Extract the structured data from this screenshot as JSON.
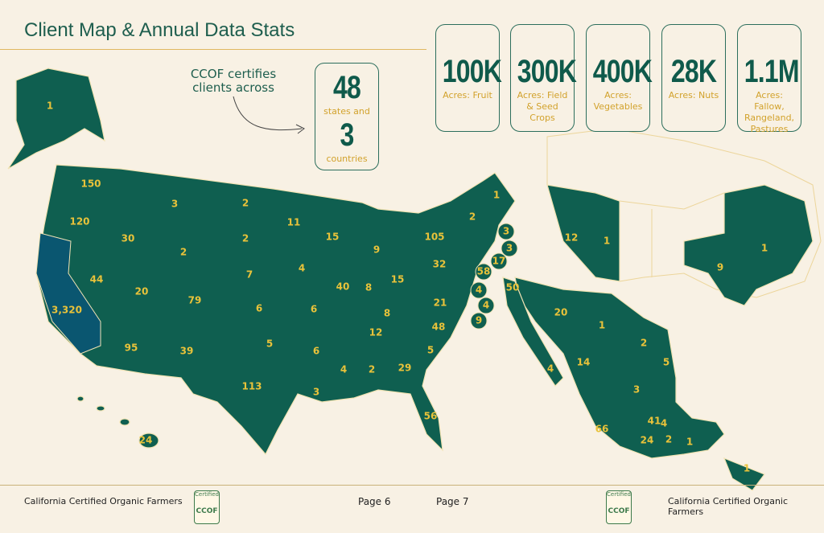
{
  "header": {
    "title": "Client Map & Annual Data Stats"
  },
  "callout": {
    "text": "CCOF certifies clients across",
    "states_number": "48",
    "states_label": "states and",
    "countries_number": "3",
    "countries_label": "countries"
  },
  "stats": [
    {
      "value": "100K",
      "label": "Acres: Fruit"
    },
    {
      "value": "300K",
      "label": "Acres: Field & Seed Crops"
    },
    {
      "value": "400K",
      "label": "Acres: Vegetables"
    },
    {
      "value": "28K",
      "label": "Acres: Nuts"
    },
    {
      "value": "1.1M",
      "label": "Acres: Fallow, Rangeland, Pastures"
    }
  ],
  "map": {
    "labels": [
      "1",
      "150",
      "120",
      "30",
      "3",
      "2",
      "2",
      "2",
      "7",
      "3,320",
      "44",
      "20",
      "79",
      "6",
      "95",
      "39",
      "5",
      "113",
      "11",
      "4",
      "6",
      "6",
      "3",
      "15",
      "40",
      "9",
      "8",
      "15",
      "8",
      "12",
      "4",
      "2",
      "29",
      "56",
      "5",
      "48",
      "21",
      "32",
      "105",
      "2",
      "1",
      "3",
      "3",
      "17",
      "58",
      "4",
      "4",
      "9",
      "24",
      "12",
      "1",
      "9",
      "1",
      "50",
      "20",
      "1",
      "4",
      "14",
      "2",
      "5",
      "3",
      "41",
      "4",
      "66",
      "24",
      "2",
      "1",
      "1"
    ]
  },
  "footer": {
    "left": "California Certified Organic Farmers",
    "page_left": "Page 6",
    "page_right": "Page 7",
    "right": "California Certified Organic Farmers",
    "logo_top": "Certified",
    "logo": "CCOF"
  }
}
